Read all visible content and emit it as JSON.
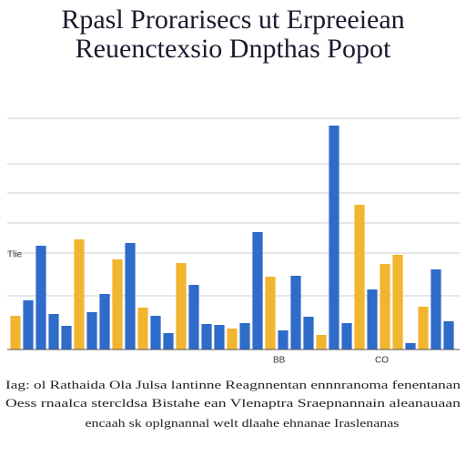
{
  "chart_data": {
    "type": "bar",
    "title": [
      "Rpasl Prorarisecs ut Erpreeiean",
      "Reuenctexsio Dnpthas Popot"
    ],
    "annotations": [
      "Tlie",
      "BB",
      "CO",
      "Iag: ol Rathaida Ola Julsa lantinne Reagnnentan ennnranoma fenentanan",
      "Oess rnaalca stercldsa Bistahe ean Vlenaptra Sraepnannain aleanauaan",
      "encaah sk oplgnannal welt dlaahe ehnanae Iraslenanas"
    ],
    "categories": [
      null,
      null,
      null,
      null,
      null,
      null,
      null,
      null,
      null,
      null,
      null,
      null,
      null,
      null,
      null,
      null,
      null,
      null,
      null,
      null,
      null,
      null,
      null,
      null,
      null,
      null,
      null,
      null,
      null,
      null,
      null,
      null,
      null,
      null,
      null
    ],
    "series": [
      {
        "color": "#2f6bc9",
        "values": [
          null,
          54,
          114,
          39,
          26,
          null,
          41,
          61,
          null,
          117,
          null,
          37,
          18,
          null,
          71,
          28,
          27,
          null,
          29,
          129,
          null,
          21,
          81,
          36,
          null,
          246,
          29,
          null,
          66,
          null,
          null,
          7,
          null,
          88,
          31
        ]
      },
      {
        "color": "#f2b530",
        "values": [
          37,
          null,
          null,
          null,
          null,
          121,
          null,
          null,
          99,
          null,
          46,
          null,
          null,
          95,
          null,
          null,
          null,
          23,
          null,
          null,
          80,
          null,
          null,
          null,
          16,
          null,
          null,
          159,
          null,
          94,
          104,
          null,
          47,
          null,
          null
        ]
      }
    ],
    "ylim": [
      0,
      254
    ]
  }
}
